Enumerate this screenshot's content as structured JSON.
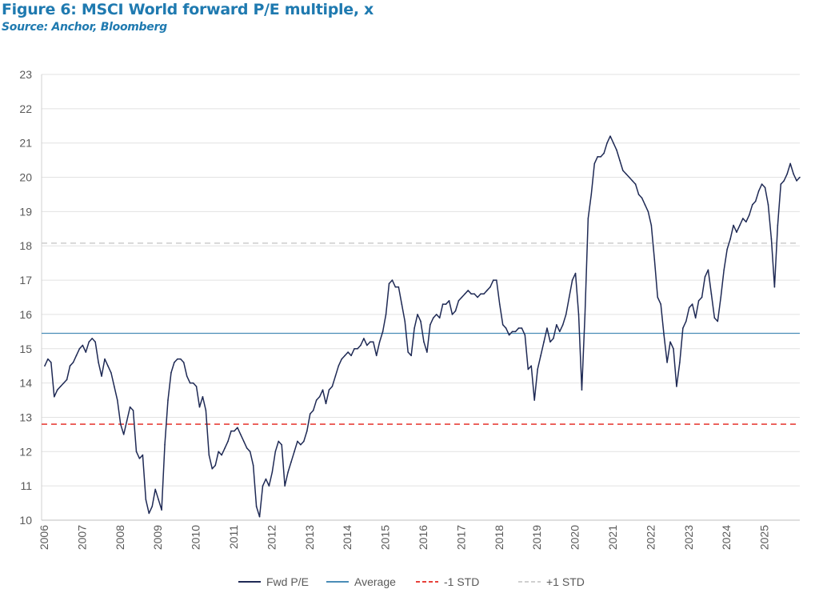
{
  "chart_data": {
    "type": "line",
    "title": "Figure 6: MSCI World forward P/E multiple, x",
    "subtitle": "Source: Anchor, Bloomberg",
    "xlabel": "",
    "ylabel": "",
    "ylim": [
      10,
      23
    ],
    "yticks": [
      "10",
      "11",
      "12",
      "13",
      "14",
      "15",
      "16",
      "17",
      "18",
      "19",
      "20",
      "21",
      "22",
      "23"
    ],
    "xticks": [
      "2006",
      "2007",
      "2008",
      "2009",
      "2010",
      "2011",
      "2012",
      "2013",
      "2014",
      "2015",
      "2016",
      "2017",
      "2018",
      "2019",
      "2020",
      "2021",
      "2022",
      "2023",
      "2024",
      "2025"
    ],
    "xlim": [
      2006,
      2026
    ],
    "grid": "horizontal",
    "legend_position": "bottom",
    "series": [
      {
        "name": "Fwd P/E",
        "color": "#1f2a55",
        "style": "solid",
        "start_year": 2006,
        "frequency": "monthly",
        "values": [
          14.5,
          14.7,
          14.6,
          13.6,
          13.8,
          13.9,
          14.0,
          14.1,
          14.5,
          14.6,
          14.8,
          15.0,
          15.1,
          14.9,
          15.2,
          15.3,
          15.2,
          14.6,
          14.2,
          14.7,
          14.5,
          14.3,
          13.9,
          13.5,
          12.8,
          12.5,
          12.9,
          13.3,
          13.2,
          12.0,
          11.8,
          11.9,
          10.6,
          10.2,
          10.4,
          10.9,
          10.6,
          10.3,
          12.2,
          13.5,
          14.3,
          14.6,
          14.7,
          14.7,
          14.6,
          14.2,
          14.0,
          14.0,
          13.9,
          13.3,
          13.6,
          13.2,
          11.9,
          11.5,
          11.6,
          12.0,
          11.9,
          12.1,
          12.3,
          12.6,
          12.6,
          12.7,
          12.5,
          12.3,
          12.1,
          12.0,
          11.6,
          10.4,
          10.1,
          11.0,
          11.2,
          11.0,
          11.4,
          12.0,
          12.3,
          12.2,
          11.0,
          11.4,
          11.7,
          12.0,
          12.3,
          12.2,
          12.3,
          12.6,
          13.1,
          13.2,
          13.5,
          13.6,
          13.8,
          13.4,
          13.8,
          13.9,
          14.2,
          14.5,
          14.7,
          14.8,
          14.9,
          14.8,
          15.0,
          15.0,
          15.1,
          15.3,
          15.1,
          15.2,
          15.2,
          14.8,
          15.2,
          15.5,
          16.0,
          16.9,
          17.0,
          16.8,
          16.8,
          16.3,
          15.8,
          14.9,
          14.8,
          15.6,
          16.0,
          15.8,
          15.2,
          14.9,
          15.7,
          15.9,
          16.0,
          15.9,
          16.3,
          16.3,
          16.4,
          16.0,
          16.1,
          16.4,
          16.5,
          16.6,
          16.7,
          16.6,
          16.6,
          16.5,
          16.6,
          16.6,
          16.7,
          16.8,
          17.0,
          17.0,
          16.3,
          15.7,
          15.6,
          15.4,
          15.5,
          15.5,
          15.6,
          15.6,
          15.4,
          14.4,
          14.5,
          13.5,
          14.4,
          14.8,
          15.2,
          15.6,
          15.2,
          15.3,
          15.7,
          15.5,
          15.7,
          16.0,
          16.5,
          17.0,
          17.2,
          16.0,
          13.8,
          16.0,
          18.8,
          19.5,
          20.4,
          20.6,
          20.6,
          20.7,
          21.0,
          21.2,
          21.0,
          20.8,
          20.5,
          20.2,
          20.1,
          20.0,
          19.9,
          19.8,
          19.5,
          19.4,
          19.2,
          19.0,
          18.6,
          17.6,
          16.5,
          16.3,
          15.4,
          14.6,
          15.2,
          15.0,
          13.9,
          14.6,
          15.6,
          15.8,
          16.2,
          16.3,
          15.9,
          16.4,
          16.5,
          17.1,
          17.3,
          16.6,
          15.9,
          15.8,
          16.5,
          17.3,
          17.9,
          18.2,
          18.6,
          18.4,
          18.6,
          18.8,
          18.7,
          18.9,
          19.2,
          19.3,
          19.6,
          19.8,
          19.7,
          19.2,
          18.2,
          16.8,
          18.6,
          19.8,
          19.9,
          20.1,
          20.4,
          20.1,
          19.9,
          20.0
        ]
      },
      {
        "name": "Average",
        "color": "#4a8db7",
        "style": "solid",
        "value": 15.45
      },
      {
        "name": "-1 STD",
        "color": "#e8413a",
        "style": "dashed",
        "value": 12.8
      },
      {
        "name": "+1 STD",
        "color": "#d0d0d0",
        "style": "dashed",
        "value": 18.08
      }
    ]
  }
}
